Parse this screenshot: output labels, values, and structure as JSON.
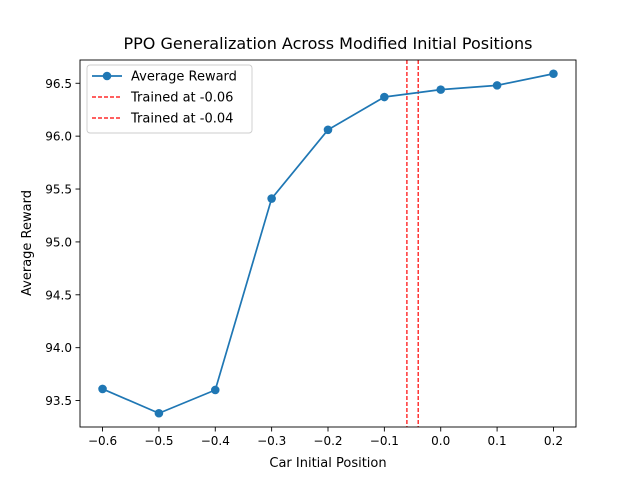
{
  "chart_data": {
    "type": "line",
    "title": "PPO Generalization Across Modified Initial Positions",
    "xlabel": "Car Initial Position",
    "ylabel": "Average Reward",
    "xlim": [
      -0.64,
      0.24
    ],
    "ylim": [
      93.25,
      96.72
    ],
    "x_ticks": [
      -0.6,
      -0.5,
      -0.4,
      -0.3,
      -0.2,
      -0.1,
      0.0,
      0.1,
      0.2
    ],
    "x_tick_labels": [
      "−0.6",
      "−0.5",
      "−0.4",
      "−0.3",
      "−0.2",
      "−0.1",
      "0.0",
      "0.1",
      "0.2"
    ],
    "y_ticks": [
      93.5,
      94.0,
      94.5,
      95.0,
      95.5,
      96.0,
      96.5
    ],
    "y_tick_labels": [
      "93.5",
      "94.0",
      "94.5",
      "95.0",
      "95.5",
      "96.0",
      "96.5"
    ],
    "grid": false,
    "legend_position": "upper-left",
    "series": [
      {
        "name": "Average Reward",
        "color": "#1f77b4",
        "marker": "circle",
        "x": [
          -0.6,
          -0.5,
          -0.4,
          -0.3,
          -0.2,
          -0.1,
          0.0,
          0.1,
          0.2
        ],
        "y": [
          93.61,
          93.38,
          93.6,
          95.41,
          96.06,
          96.37,
          96.44,
          96.48,
          96.59
        ]
      }
    ],
    "vlines": [
      {
        "name": "Trained at -0.06",
        "x": -0.06,
        "color": "#ff0000",
        "style": "dashed"
      },
      {
        "name": "Trained at -0.04",
        "x": -0.04,
        "color": "#ff0000",
        "style": "dashed"
      }
    ]
  }
}
